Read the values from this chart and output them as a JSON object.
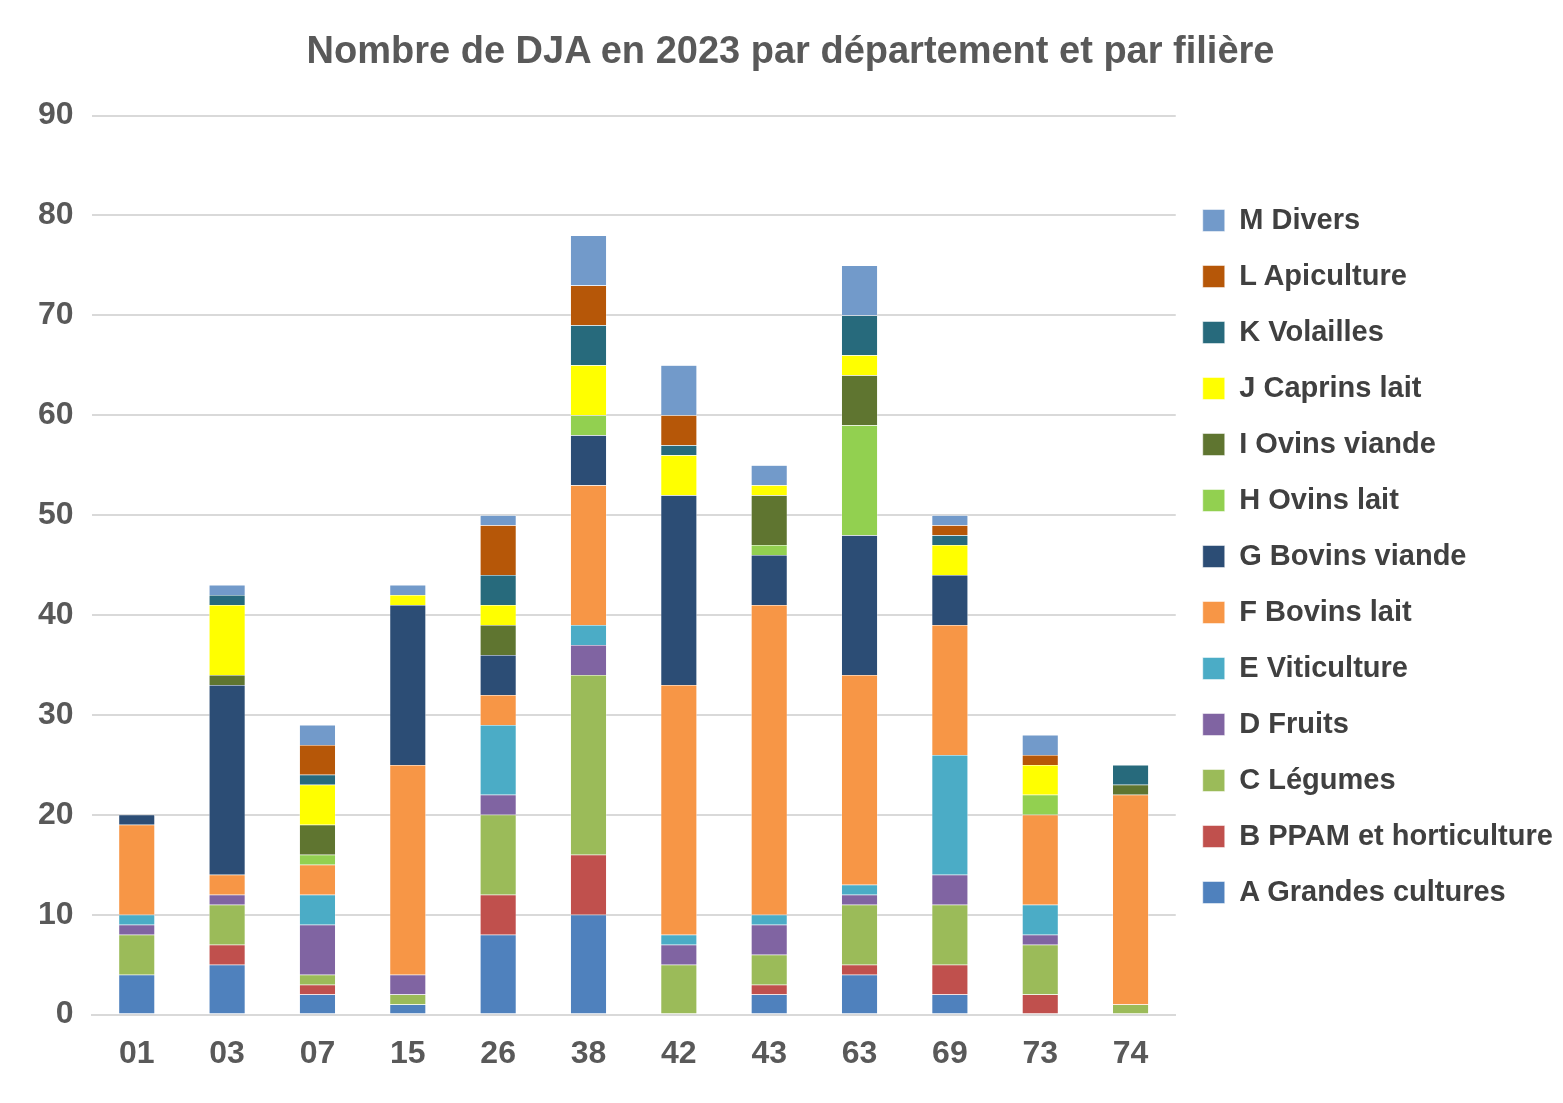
{
  "chart_data": {
    "type": "bar",
    "title": "Nombre de DJA en 2023 par département et par filière",
    "categories": [
      "01",
      "03",
      "07",
      "15",
      "26",
      "38",
      "42",
      "43",
      "63",
      "69",
      "73",
      "74"
    ],
    "stacked": true,
    "ylim": [
      0,
      90
    ],
    "yticks": [
      0,
      10,
      20,
      30,
      40,
      50,
      60,
      70,
      80,
      90
    ],
    "grid": "y",
    "legend": "right",
    "series": [
      {
        "name": "A Grandes cultures",
        "color": "#4f81bd",
        "values": [
          4,
          5,
          2,
          1,
          8,
          10,
          0,
          2,
          4,
          2,
          0,
          0
        ]
      },
      {
        "name": "B PPAM et horticulture",
        "color": "#c0504d",
        "values": [
          0,
          2,
          1,
          0,
          4,
          6,
          0,
          1,
          1,
          3,
          2,
          0
        ]
      },
      {
        "name": "C Légumes",
        "color": "#9bbb59",
        "values": [
          4,
          4,
          1,
          1,
          8,
          18,
          5,
          3,
          6,
          6,
          5,
          1
        ]
      },
      {
        "name": "D Fruits",
        "color": "#8064a2",
        "values": [
          1,
          1,
          5,
          2,
          2,
          3,
          2,
          3,
          1,
          3,
          1,
          0
        ]
      },
      {
        "name": "E Viticulture",
        "color": "#4bacc6",
        "values": [
          1,
          0,
          3,
          0,
          7,
          2,
          1,
          1,
          1,
          12,
          3,
          0
        ]
      },
      {
        "name": "F Bovins lait",
        "color": "#f79646",
        "values": [
          9,
          2,
          3,
          21,
          3,
          14,
          25,
          31,
          21,
          13,
          9,
          21
        ]
      },
      {
        "name": "G Bovins viande",
        "color": "#2c4d75",
        "values": [
          1,
          19,
          0,
          16,
          4,
          5,
          19,
          5,
          14,
          5,
          0,
          0
        ]
      },
      {
        "name": "H Ovins lait",
        "color": "#92d050",
        "values": [
          0,
          0,
          1,
          0,
          0,
          2,
          0,
          1,
          11,
          0,
          2,
          0
        ]
      },
      {
        "name": "I Ovins viande",
        "color": "#5f7530",
        "values": [
          0,
          1,
          3,
          0,
          3,
          0,
          0,
          5,
          5,
          0,
          0,
          1
        ]
      },
      {
        "name": "J Caprins lait",
        "color": "#ffff00",
        "values": [
          0,
          7,
          4,
          1,
          2,
          5,
          4,
          1,
          2,
          3,
          3,
          0
        ]
      },
      {
        "name": "K Volailles",
        "color": "#276a7c",
        "values": [
          0,
          1,
          1,
          0,
          3,
          4,
          1,
          0,
          4,
          1,
          0,
          2
        ]
      },
      {
        "name": "L Apiculture",
        "color": "#b65708",
        "values": [
          0,
          0,
          3,
          0,
          5,
          4,
          3,
          0,
          0,
          1,
          1,
          0
        ]
      },
      {
        "name": "M Divers",
        "color": "#729aca",
        "values": [
          0,
          1,
          2,
          1,
          1,
          5,
          5,
          2,
          5,
          1,
          2,
          0
        ]
      }
    ]
  }
}
